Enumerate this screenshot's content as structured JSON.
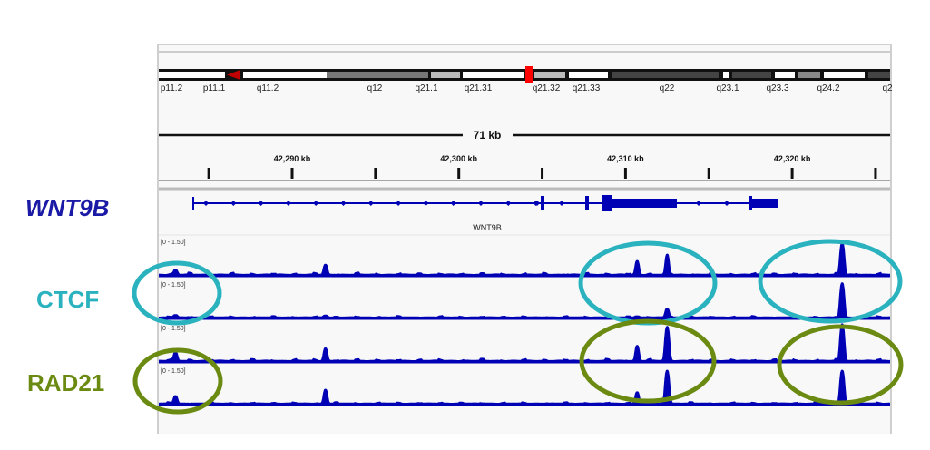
{
  "side_labels": {
    "gene": {
      "text": "WNT9B",
      "color": "#1a1aa6"
    },
    "ctcf": {
      "text": "CTCF",
      "color": "#2ab3bf"
    },
    "rad21": {
      "text": "RAD21",
      "color": "#6b8a12"
    }
  },
  "ideogram": {
    "bands": [
      "p11.2",
      "p11.1",
      "q11.2",
      "q12",
      "q21.1",
      "q21.31",
      "q21.32",
      "q21.33",
      "q22",
      "q23.1",
      "q23.3",
      "q24.2",
      "q2"
    ]
  },
  "scale_label": "71 kb",
  "ruler": {
    "ticks": [
      {
        "kb": 42290,
        "label": "42,290 kb"
      },
      {
        "kb": 42300,
        "label": "42,300 kb"
      },
      {
        "kb": 42310,
        "label": "42,310 kb"
      },
      {
        "kb": 42320,
        "label": "42,320 kb"
      }
    ]
  },
  "gene_track": {
    "name": "WNT9B",
    "color": "#0000b4"
  },
  "tracks": [
    {
      "range": "[0 - 1.50]",
      "group": "CTCF",
      "peaks": [
        {
          "kb": 42283.0,
          "v": 0.2
        },
        {
          "kb": 42292.0,
          "v": 0.4
        },
        {
          "kb": 42310.7,
          "v": 0.55
        },
        {
          "kb": 42312.5,
          "v": 0.8
        },
        {
          "kb": 42323.0,
          "v": 1.25
        }
      ]
    },
    {
      "range": "[0 - 1.50]",
      "group": "CTCF",
      "peaks": [
        {
          "kb": 42283.0,
          "v": 0.1
        },
        {
          "kb": 42292.0,
          "v": 0.08
        },
        {
          "kb": 42310.7,
          "v": 0.05
        },
        {
          "kb": 42312.5,
          "v": 0.35
        },
        {
          "kb": 42323.0,
          "v": 1.35
        }
      ]
    },
    {
      "range": "[0 - 1.50]",
      "group": "RAD21",
      "peaks": [
        {
          "kb": 42283.0,
          "v": 0.35
        },
        {
          "kb": 42292.0,
          "v": 0.5
        },
        {
          "kb": 42310.7,
          "v": 0.6
        },
        {
          "kb": 42312.5,
          "v": 1.35
        },
        {
          "kb": 42323.0,
          "v": 1.45
        }
      ]
    },
    {
      "range": "[0 - 1.50]",
      "group": "RAD21",
      "peaks": [
        {
          "kb": 42283.0,
          "v": 0.3
        },
        {
          "kb": 42292.0,
          "v": 0.55
        },
        {
          "kb": 42310.7,
          "v": 0.45
        },
        {
          "kb": 42312.5,
          "v": 1.3
        },
        {
          "kb": 42323.0,
          "v": 1.3
        }
      ]
    }
  ],
  "colors": {
    "signal": "#0000b4",
    "ctcf_circle": "#2ab3bf",
    "rad21_circle": "#6b8a12",
    "centromere": "#c00000",
    "current_region": "#ff0000"
  }
}
